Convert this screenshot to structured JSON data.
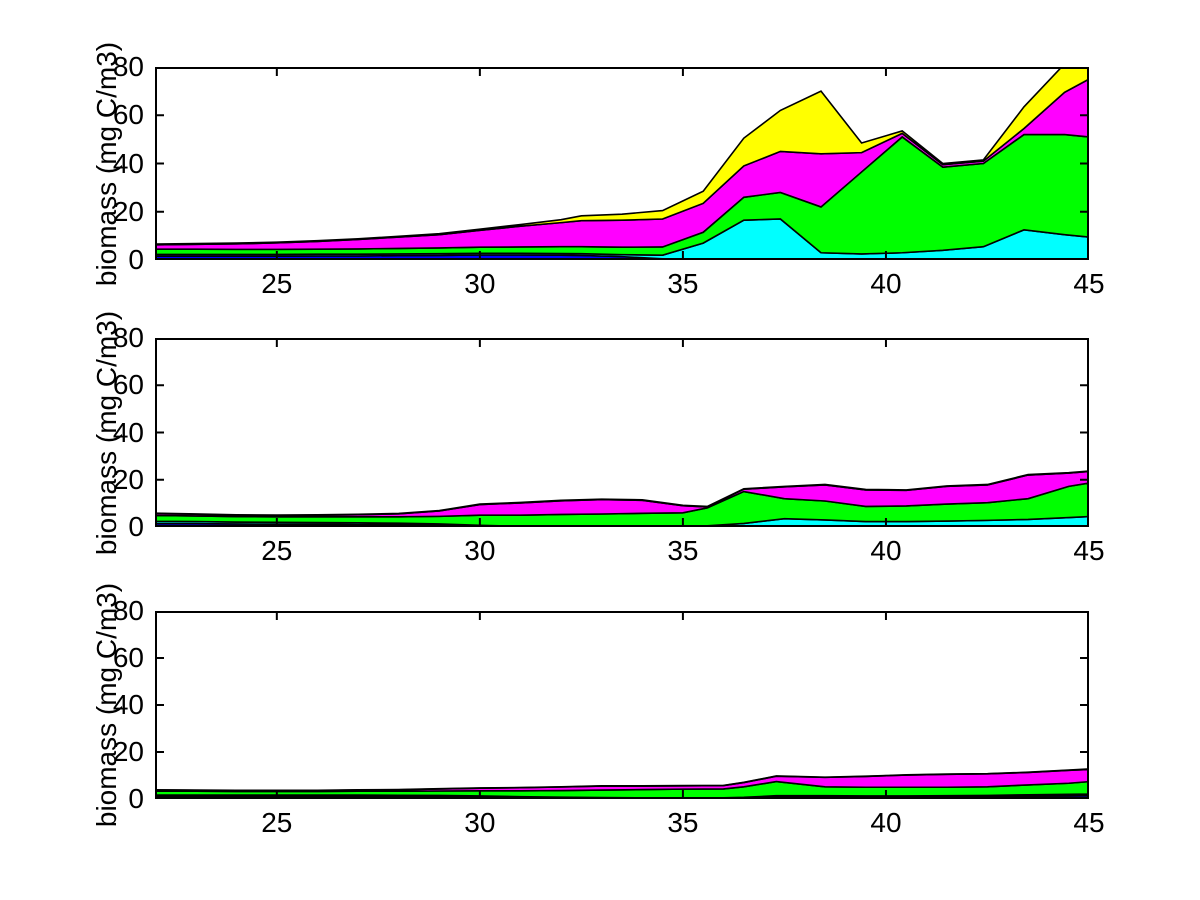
{
  "figure": {
    "background": "#ffffff",
    "axis_color": "#000000"
  },
  "chart_data": [
    {
      "type": "area",
      "stacked": true,
      "title": "",
      "xlabel": "",
      "ylabel": "biomass (mg C/m3)",
      "xlim": [
        22,
        45
      ],
      "ylim": [
        0,
        80
      ],
      "xticks": [
        25,
        30,
        35,
        40,
        45
      ],
      "yticks": [
        0,
        20,
        40,
        60,
        80
      ],
      "grid": false,
      "legend": "none",
      "x": [
        22,
        23,
        24,
        25,
        26,
        27,
        28,
        29,
        30,
        31,
        32,
        32.5,
        33.5,
        34.5,
        35.5,
        36.5,
        37.4,
        38.4,
        39.4,
        40.4,
        41.4,
        42.4,
        43.4,
        44.4,
        45
      ],
      "series": [
        {
          "name": "blue",
          "color": "#0000ff",
          "values": [
            1.6,
            1.6,
            1.6,
            1.6,
            1.7,
            1.7,
            1.8,
            1.9,
            2.1,
            2.1,
            2.0,
            1.9,
            1.4,
            0.5,
            0,
            0,
            0,
            0,
            0,
            0,
            0,
            0,
            0,
            0,
            0
          ]
        },
        {
          "name": "cyan",
          "color": "#00ffff",
          "values": [
            0.7,
            0.7,
            0.7,
            0.7,
            0.7,
            0.7,
            0.7,
            0.7,
            0.7,
            0.7,
            0.7,
            0.7,
            0.8,
            1.5,
            7,
            16.5,
            17,
            3,
            2.5,
            3,
            4,
            5.5,
            12.5,
            10.5,
            9.5
          ]
        },
        {
          "name": "green",
          "color": "#00ff00",
          "values": [
            2.2,
            2.2,
            2.1,
            2.1,
            2.1,
            2.2,
            2.3,
            2.4,
            2.5,
            2.6,
            2.8,
            2.9,
            3.1,
            3.4,
            4.5,
            9.5,
            11,
            19,
            34,
            48,
            34.5,
            34.5,
            39.5,
            41.5,
            41.5
          ]
        },
        {
          "name": "magenta",
          "color": "#ff00ff",
          "values": [
            1.8,
            2.0,
            2.3,
            2.7,
            3.2,
            3.9,
            4.7,
            5.5,
            7.0,
            8.6,
            10.0,
            10.8,
            11.2,
            11.6,
            12,
            13,
            17,
            22,
            8,
            1.5,
            1,
            1,
            2.5,
            17.5,
            24
          ]
        },
        {
          "name": "yellow",
          "color": "#ffff00",
          "values": [
            0.3,
            0.3,
            0.3,
            0.3,
            0.3,
            0.3,
            0.3,
            0.4,
            0.5,
            0.7,
            1.2,
            2.0,
            2.5,
            3.5,
            5,
            11.5,
            17,
            26,
            4,
            1,
            0.5,
            0.5,
            9,
            11.8,
            11
          ]
        }
      ]
    },
    {
      "type": "area",
      "stacked": true,
      "title": "",
      "xlabel": "",
      "ylabel": "biomass (mg C/m3)",
      "xlim": [
        22,
        45
      ],
      "ylim": [
        0,
        80
      ],
      "xticks": [
        25,
        30,
        35,
        40,
        45
      ],
      "yticks": [
        0,
        20,
        40,
        60,
        80
      ],
      "grid": false,
      "legend": "none",
      "x": [
        22,
        23,
        24,
        25,
        26,
        27,
        28,
        29,
        30,
        31,
        32,
        33,
        34,
        35,
        35.6,
        36.5,
        37.5,
        38.5,
        39.5,
        40.5,
        41.5,
        42.5,
        43.5,
        44.5,
        45
      ],
      "series": [
        {
          "name": "blue",
          "color": "#0000ff",
          "values": [
            1.4,
            1.4,
            1.3,
            1.2,
            1.2,
            1.1,
            1.0,
            0.8,
            0.3,
            0,
            0,
            0,
            0,
            0,
            0,
            0,
            0,
            0,
            0,
            0,
            0,
            0,
            0,
            0,
            0
          ]
        },
        {
          "name": "cyan",
          "color": "#00ffff",
          "values": [
            1.0,
            0.9,
            0.8,
            0.8,
            0.7,
            0.7,
            0.6,
            0.5,
            0.4,
            0.3,
            0.3,
            0.3,
            0.3,
            0.3,
            0.5,
            1.5,
            3.5,
            3.0,
            2.3,
            2.3,
            2.5,
            2.8,
            3.2,
            4.0,
            4.4
          ]
        },
        {
          "name": "green",
          "color": "#00ff00",
          "values": [
            2.5,
            2.4,
            2.3,
            2.3,
            2.4,
            2.5,
            2.7,
            3.2,
            4.3,
            4.7,
            5.0,
            5.2,
            5.5,
            5.7,
            7.6,
            13.5,
            8.5,
            8.0,
            6.4,
            6.6,
            7.2,
            7.5,
            8.8,
            13.2,
            14.2
          ]
        },
        {
          "name": "magenta",
          "color": "#ff00ff",
          "values": [
            0.8,
            0.7,
            0.6,
            0.6,
            0.7,
            0.9,
            1.3,
            2.3,
            4.5,
            5.2,
            5.8,
            6.1,
            5.5,
            3.0,
            0.4,
            1.0,
            5.0,
            6.8,
            7.0,
            6.6,
            7.5,
            7.5,
            10.0,
            5.6,
            4.9
          ]
        },
        {
          "name": "yellow",
          "color": "#ffff00",
          "values": [
            0.15,
            0.15,
            0.15,
            0.15,
            0.15,
            0.15,
            0.15,
            0.15,
            0.2,
            0.2,
            0.2,
            0.2,
            0.2,
            0.2,
            0.2,
            0.2,
            0.2,
            0.2,
            0.2,
            0.2,
            0.2,
            0.2,
            0.2,
            0.2,
            0.2
          ]
        }
      ]
    },
    {
      "type": "area",
      "stacked": true,
      "title": "",
      "xlabel": "",
      "ylabel": "biomass (mg C/m3)",
      "xlim": [
        22,
        45
      ],
      "ylim": [
        0,
        80
      ],
      "xticks": [
        25,
        30,
        35,
        40,
        45
      ],
      "yticks": [
        0,
        20,
        40,
        60,
        80
      ],
      "grid": false,
      "legend": "none",
      "x": [
        22,
        23,
        24,
        25,
        26,
        27,
        28,
        29,
        30,
        31,
        32,
        33,
        34,
        35,
        36,
        36.5,
        37.3,
        38.5,
        39.5,
        40.5,
        41.5,
        42.5,
        43.5,
        44.5,
        45
      ],
      "series": [
        {
          "name": "blue",
          "color": "#0000ff",
          "values": [
            1.2,
            1.2,
            1.2,
            1.2,
            1.2,
            1.2,
            1.1,
            1.0,
            0.8,
            0.6,
            0.4,
            0.2,
            0.1,
            0.1,
            0.1,
            0.3,
            0.9,
            1.0,
            0.9,
            0.9,
            0.9,
            1.0,
            1.2,
            1.3,
            1.4
          ]
        },
        {
          "name": "cyan",
          "color": "#00ffff",
          "values": [
            0.5,
            0.5,
            0.5,
            0.5,
            0.5,
            0.5,
            0.5,
            0.5,
            0.5,
            0.4,
            0.4,
            0.4,
            0.4,
            0.4,
            0.4,
            0.4,
            0.5,
            0.4,
            0.4,
            0.4,
            0.5,
            0.5,
            0.6,
            0.7,
            0.7
          ]
        },
        {
          "name": "green",
          "color": "#00ff00",
          "values": [
            1.6,
            1.6,
            1.5,
            1.5,
            1.5,
            1.6,
            1.7,
            1.9,
            2.2,
            2.5,
            2.8,
            3.2,
            3.5,
            3.7,
            3.8,
            4.5,
            6.0,
            3.8,
            3.7,
            3.7,
            3.6,
            3.7,
            4.2,
            4.7,
            5.3
          ]
        },
        {
          "name": "magenta",
          "color": "#ff00ff",
          "values": [
            0.5,
            0.4,
            0.4,
            0.4,
            0.4,
            0.5,
            0.6,
            0.9,
            1.1,
            1.3,
            1.5,
            1.7,
            1.5,
            1.4,
            1.4,
            1.8,
            2.3,
            4.0,
            4.6,
            5.2,
            5.5,
            5.5,
            5.3,
            5.5,
            5.2
          ]
        },
        {
          "name": "yellow",
          "color": "#ffff00",
          "values": [
            0.1,
            0.1,
            0.1,
            0.1,
            0.1,
            0.1,
            0.1,
            0.1,
            0.1,
            0.1,
            0.1,
            0.1,
            0.1,
            0.1,
            0.1,
            0.1,
            0.1,
            0.1,
            0.1,
            0.1,
            0.1,
            0.1,
            0.1,
            0.1,
            0.2
          ]
        }
      ]
    }
  ]
}
